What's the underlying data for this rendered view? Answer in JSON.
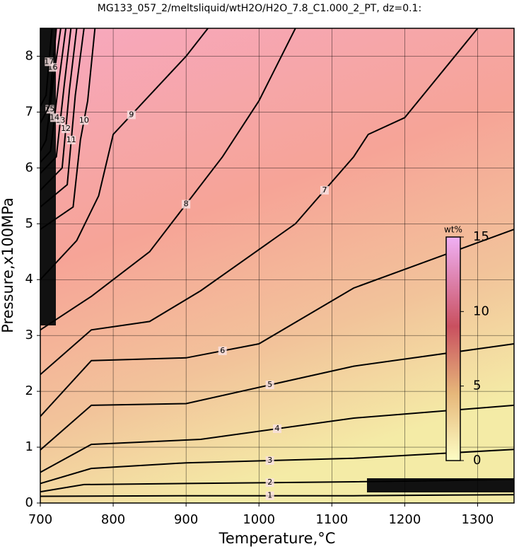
{
  "chart_data": {
    "type": "contour",
    "title": "MG133_057_2/meltsliquid/wtH2O/H2O_7.8_C1.000_2_PT, dz=0.1:",
    "x_label": "Temperature,°C",
    "y_label": "Pressure,x100MPa",
    "xlim": [
      700,
      1350
    ],
    "ylim": [
      0,
      8.5
    ],
    "xticks": [
      700,
      800,
      900,
      1000,
      1100,
      1200,
      1300
    ],
    "yticks": [
      0,
      1,
      2,
      3,
      4,
      5,
      6,
      7,
      8
    ],
    "grid": true,
    "contours": [
      {
        "level": 1,
        "x": [
          700,
          900,
          1130,
          1350
        ],
        "y": [
          0.12,
          0.13,
          0.13,
          0.15
        ]
      },
      {
        "level": 2,
        "x": [
          700,
          760,
          900,
          1130,
          1350
        ],
        "y": [
          0.2,
          0.33,
          0.35,
          0.38,
          0.42
        ]
      },
      {
        "level": 3,
        "x": [
          700,
          770,
          900,
          1130,
          1350
        ],
        "y": [
          0.35,
          0.62,
          0.72,
          0.8,
          0.96
        ]
      },
      {
        "level": 4,
        "x": [
          700,
          770,
          920,
          1130,
          1350
        ],
        "y": [
          0.55,
          1.05,
          1.14,
          1.52,
          1.75
        ]
      },
      {
        "level": 5,
        "x": [
          700,
          770,
          900,
          1130,
          1350
        ],
        "y": [
          0.95,
          1.75,
          1.78,
          2.45,
          2.85
        ]
      },
      {
        "level": 6,
        "x": [
          700,
          770,
          900,
          1000,
          1130,
          1350
        ],
        "y": [
          1.55,
          2.55,
          2.6,
          2.85,
          3.85,
          4.9
        ]
      },
      {
        "level": 7,
        "x": [
          700,
          770,
          850,
          920,
          1050,
          1130,
          1150,
          1200,
          1300
        ],
        "y": [
          2.3,
          3.1,
          3.25,
          3.8,
          5.0,
          6.2,
          6.6,
          6.9,
          8.5
        ]
      },
      {
        "level": 8,
        "x": [
          700,
          770,
          850,
          950,
          1000,
          1050
        ],
        "y": [
          3.1,
          3.7,
          4.5,
          6.2,
          7.2,
          8.5
        ]
      },
      {
        "level": 9,
        "x": [
          700,
          750,
          780,
          800,
          850,
          900,
          930
        ],
        "y": [
          4.0,
          4.7,
          5.5,
          6.6,
          7.3,
          8.0,
          8.5
        ]
      },
      {
        "level": 10,
        "x": [
          700,
          745,
          755,
          765,
          775
        ],
        "y": [
          4.9,
          5.3,
          6.5,
          7.2,
          8.5
        ]
      },
      {
        "level": 11,
        "x": [
          700,
          737,
          748,
          760
        ],
        "y": [
          5.3,
          5.7,
          7.3,
          8.5
        ]
      },
      {
        "level": 12,
        "x": [
          700,
          730,
          740,
          750
        ],
        "y": [
          5.6,
          6.0,
          7.4,
          8.5
        ]
      },
      {
        "level": 13,
        "x": [
          700,
          722,
          733,
          742
        ],
        "y": [
          5.9,
          6.2,
          7.5,
          8.5
        ]
      },
      {
        "level": 14,
        "x": [
          700,
          714,
          725,
          735
        ],
        "y": [
          6.1,
          6.3,
          7.5,
          8.5
        ]
      },
      {
        "level": 15,
        "x": [
          700,
          708,
          718,
          728
        ],
        "y": [
          6.3,
          6.5,
          7.6,
          8.5
        ]
      },
      {
        "level": 16,
        "x": [
          700,
          712,
          722
        ],
        "y": [
          6.8,
          7.1,
          8.5
        ]
      },
      {
        "level": 17,
        "x": [
          700,
          708,
          716
        ],
        "y": [
          7.1,
          7.3,
          8.5
        ]
      }
    ],
    "colorbar": {
      "label": "wt%",
      "clim": [
        0,
        15
      ],
      "ticks": [
        0,
        5,
        10,
        15
      ]
    }
  }
}
